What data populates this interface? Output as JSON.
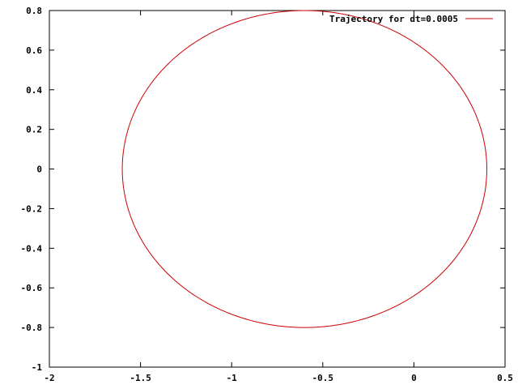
{
  "chart_data": {
    "type": "line",
    "title": "",
    "xlabel": "",
    "ylabel": "",
    "xlim": [
      -2,
      0.5
    ],
    "ylim": [
      -1,
      0.8
    ],
    "x_ticks": [
      -2,
      -1.5,
      -1,
      -0.5,
      0,
      0.5
    ],
    "x_tick_labels": [
      "-2",
      "-1.5",
      "-1",
      "-0.5",
      "0",
      "0.5"
    ],
    "y_ticks": [
      -1,
      -0.8,
      -0.6,
      -0.4,
      -0.2,
      0,
      0.2,
      0.4,
      0.6,
      0.8
    ],
    "y_tick_labels": [
      "-1",
      "-0.8",
      "-0.6",
      "-0.4",
      "-0.2",
      "0",
      "0.2",
      "0.4",
      "0.6",
      "0.8"
    ],
    "grid": false,
    "legend_position": "top-right",
    "series": [
      {
        "name": "Trajectory for dt=0.0005",
        "color": "#cc0000",
        "shape": "ellipse",
        "center": [
          -0.6,
          0.0
        ],
        "radius_x": 1.0,
        "radius_y": 0.8,
        "x_min": -1.6,
        "x_max": 0.4,
        "y_min": -0.8,
        "y_max": 0.8
      }
    ]
  }
}
